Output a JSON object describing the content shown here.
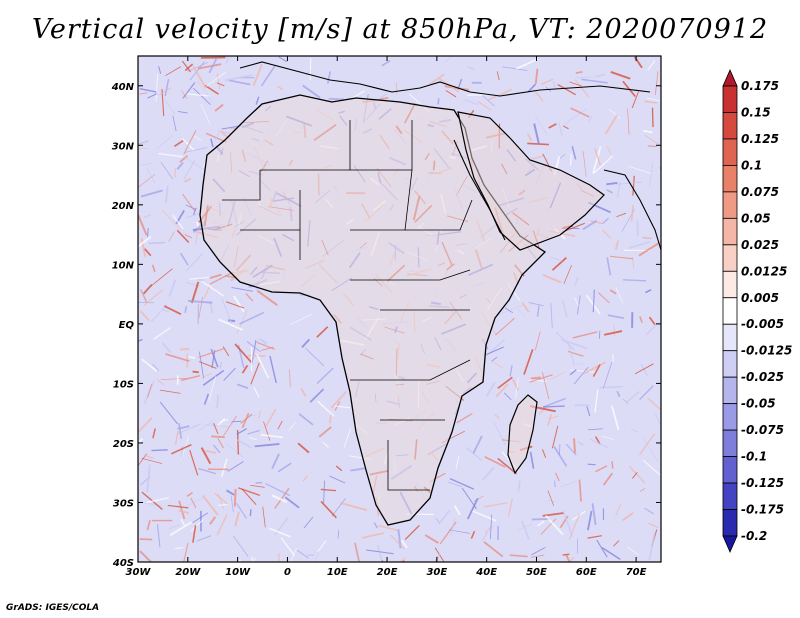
{
  "title": "Vertical velocity [m/s] at 850hPa, VT: 2020070912",
  "credit": "GrADS: IGES/COLA",
  "map": {
    "lon_range": [
      -30,
      75
    ],
    "lat_range": [
      -40,
      45
    ],
    "lat_ticks": [
      {
        "value": 40,
        "label": "40N"
      },
      {
        "value": 30,
        "label": "30N"
      },
      {
        "value": 20,
        "label": "20N"
      },
      {
        "value": 10,
        "label": "10N"
      },
      {
        "value": 0,
        "label": "EQ"
      },
      {
        "value": -10,
        "label": "10S"
      },
      {
        "value": -20,
        "label": "20S"
      },
      {
        "value": -30,
        "label": "30S"
      },
      {
        "value": -40,
        "label": "40S"
      }
    ],
    "lon_ticks": [
      {
        "value": -30,
        "label": "30W"
      },
      {
        "value": -20,
        "label": "20W"
      },
      {
        "value": -10,
        "label": "10W"
      },
      {
        "value": 0,
        "label": "0"
      },
      {
        "value": 10,
        "label": "10E"
      },
      {
        "value": 20,
        "label": "20E"
      },
      {
        "value": 30,
        "label": "30E"
      },
      {
        "value": 40,
        "label": "40E"
      },
      {
        "value": 50,
        "label": "50E"
      },
      {
        "value": 60,
        "label": "60E"
      },
      {
        "value": 70,
        "label": "70E"
      }
    ]
  },
  "colorbar": {
    "levels": [
      "0.175",
      "0.15",
      "0.125",
      "0.1",
      "0.075",
      "0.05",
      "0.025",
      "0.0125",
      "0.005",
      "-0.005",
      "-0.0125",
      "-0.025",
      "-0.05",
      "-0.075",
      "-0.1",
      "-0.125",
      "-0.175",
      "-0.2"
    ],
    "colors": [
      "#b2182b",
      "#c8312f",
      "#d6493e",
      "#e06452",
      "#e98068",
      "#ef9a85",
      "#f4b6a6",
      "#f8d0c6",
      "#fdeae4",
      "#ffffff",
      "#e6e6fb",
      "#cfcff5",
      "#b5b5ee",
      "#9a9ae6",
      "#7e7edd",
      "#6161d2",
      "#4343c3",
      "#2a2ab0",
      "#1717a0"
    ]
  }
}
